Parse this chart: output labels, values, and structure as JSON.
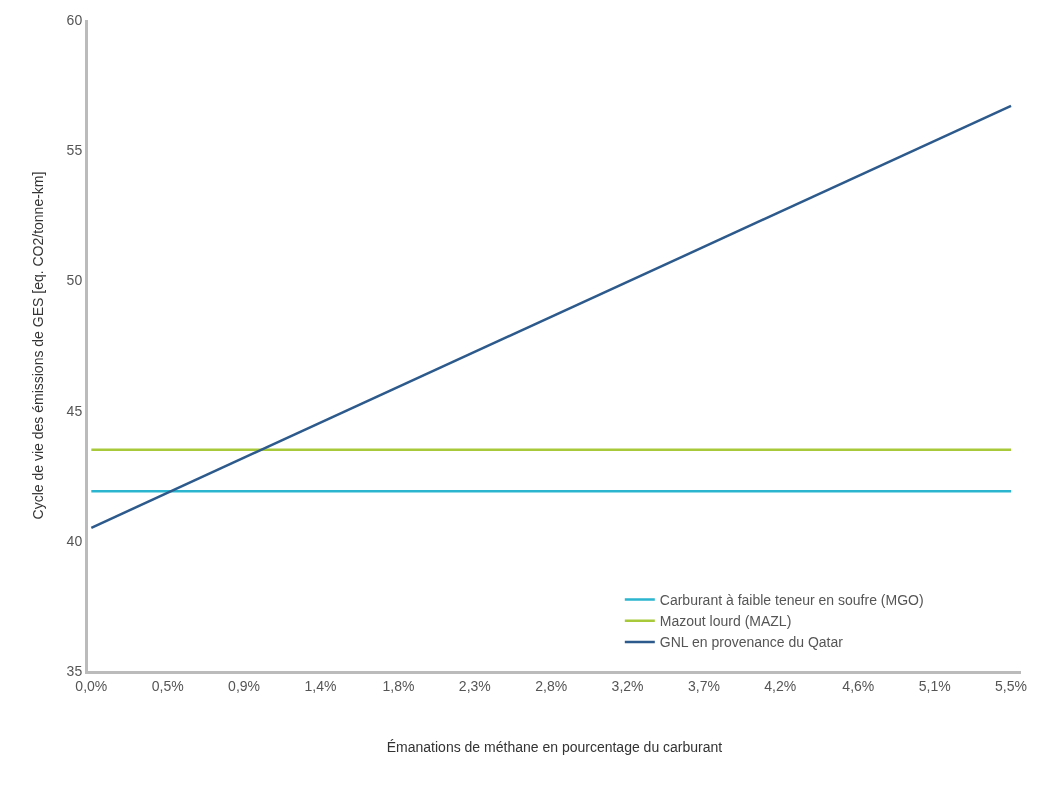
{
  "chart_data": {
    "type": "line",
    "xlabel": "Émanations de méthane en pourcentage du carburant",
    "ylabel": "Cycle de vie des émissions de GES [eq. CO2/tonne-km]",
    "xlim": [
      -0.02,
      5.6
    ],
    "xticks": [
      {
        "value": 0,
        "label": "0,0%"
      },
      {
        "value": 0.46,
        "label": "0,5%"
      },
      {
        "value": 0.92,
        "label": "0,9%"
      },
      {
        "value": 1.38,
        "label": "1,4%"
      },
      {
        "value": 1.85,
        "label": "1,8%"
      },
      {
        "value": 2.31,
        "label": "2,3%"
      },
      {
        "value": 2.77,
        "label": "2,8%"
      },
      {
        "value": 3.23,
        "label": "3,2%"
      },
      {
        "value": 3.69,
        "label": "3,7%"
      },
      {
        "value": 4.15,
        "label": "4,2%"
      },
      {
        "value": 4.62,
        "label": "4,6%"
      },
      {
        "value": 5.08,
        "label": "5,1%"
      },
      {
        "value": 5.54,
        "label": "5,5%"
      }
    ],
    "ylim": [
      35,
      60
    ],
    "yticks": [
      35,
      40,
      45,
      50,
      55,
      60
    ],
    "grid": false,
    "x": [
      0,
      5.54
    ],
    "legend": "bottom right",
    "series": [
      {
        "name": "Carburant à faible teneur en soufre (MGO)",
        "color": "#2bb5cf",
        "values": [
          41.9,
          41.9
        ]
      },
      {
        "name": "Mazout lourd (MAZL)",
        "color": "#a8c93a",
        "values": [
          43.5,
          43.5
        ]
      },
      {
        "name": "GNL en provenance du Qatar",
        "color": "#2d5a8c",
        "values": [
          40.5,
          56.7
        ]
      }
    ]
  }
}
